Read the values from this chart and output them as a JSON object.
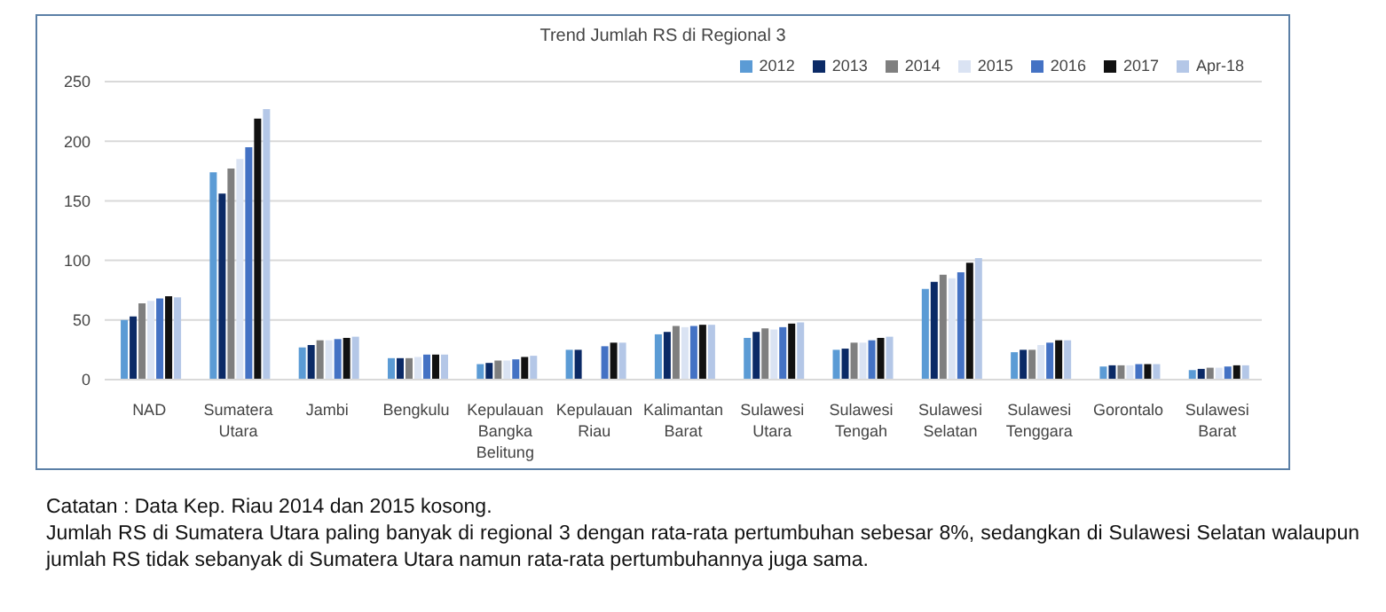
{
  "chart_data": {
    "type": "bar",
    "title": "Trend Jumlah RS di Regional  3",
    "categories": [
      "NAD",
      "Sumatera Utara",
      "Jambi",
      "Bengkulu",
      "Kepulauan Bangka Belitung",
      "Kepulauan Riau",
      "Kalimantan Barat",
      "Sulawesi Utara",
      "Sulawesi Tengah",
      "Sulawesi Selatan",
      "Sulawesi Tenggara",
      "Gorontalo",
      "Sulawesi Barat"
    ],
    "series": [
      {
        "name": "2012",
        "color": "#5b9bd5",
        "values": [
          50,
          174,
          27,
          18,
          13,
          25,
          38,
          35,
          25,
          76,
          23,
          11,
          8
        ]
      },
      {
        "name": "2013",
        "color": "#0b2a66",
        "values": [
          53,
          156,
          29,
          18,
          14,
          25,
          40,
          40,
          26,
          82,
          25,
          12,
          9
        ]
      },
      {
        "name": "2014",
        "color": "#7f7f7f",
        "values": [
          64,
          177,
          33,
          18,
          16,
          null,
          45,
          43,
          31,
          88,
          25,
          12,
          10
        ]
      },
      {
        "name": "2015",
        "color": "#dae3f3",
        "values": [
          66,
          185,
          33,
          19,
          16,
          null,
          44,
          42,
          31,
          85,
          29,
          12,
          10
        ]
      },
      {
        "name": "2016",
        "color": "#4472c4",
        "values": [
          68,
          195,
          34,
          21,
          17,
          28,
          45,
          44,
          33,
          90,
          31,
          13,
          11
        ]
      },
      {
        "name": "2017",
        "color": "#111111",
        "values": [
          70,
          219,
          35,
          21,
          19,
          31,
          46,
          47,
          35,
          98,
          33,
          13,
          12
        ]
      },
      {
        "name": "Apr-18",
        "color": "#b4c7e7",
        "values": [
          69,
          227,
          36,
          21,
          20,
          31,
          46,
          48,
          36,
          102,
          33,
          13,
          12
        ]
      }
    ],
    "ylim": [
      0,
      250
    ],
    "yticks": [
      0,
      50,
      100,
      150,
      200,
      250
    ],
    "grid": "y",
    "legend": "top right",
    "annotations": [
      "Catatan : Data Kep. Riau 2014 dan 2015 kosong.",
      "Jumlah RS di Sumatera Utara paling banyak di regional 3 dengan rata-rata pertumbuhan sebesar 8%, sedangkan di Sulawesi Selatan walaupun jumlah RS tidak sebanyak di Sumatera Utara namun rata-rata pertumbuhannya juga sama."
    ]
  }
}
